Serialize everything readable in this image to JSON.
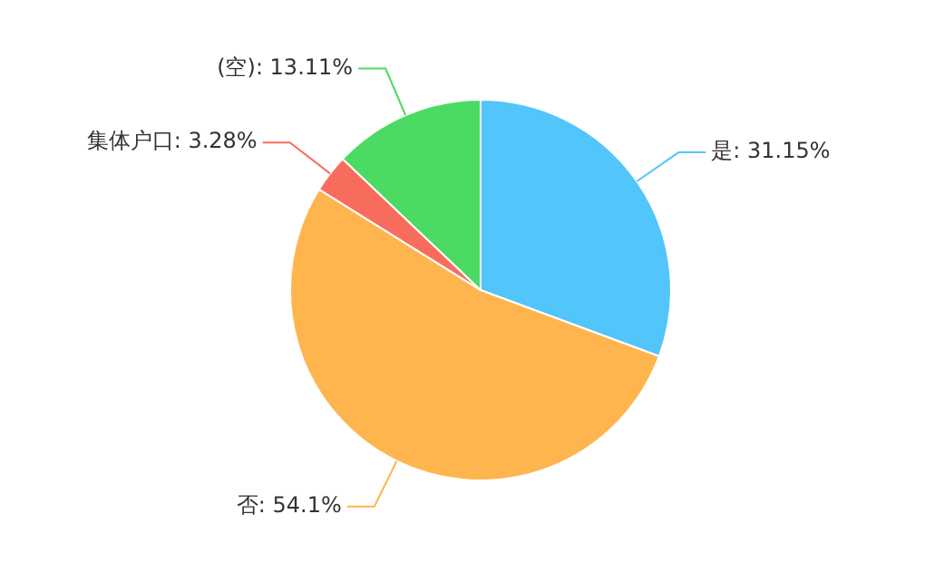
{
  "chart_data": {
    "type": "pie",
    "categories": [
      "是",
      "否",
      "集体户口",
      "(空)"
    ],
    "values": [
      31.15,
      54.1,
      3.28,
      13.11
    ],
    "colors": [
      "#52c5fa",
      "#ffb54d",
      "#f86c5e",
      "#4bda62"
    ],
    "value_labels": [
      ": 31.15%",
      ": 54.1%",
      ": 3.28%",
      ": 13.11%"
    ]
  }
}
